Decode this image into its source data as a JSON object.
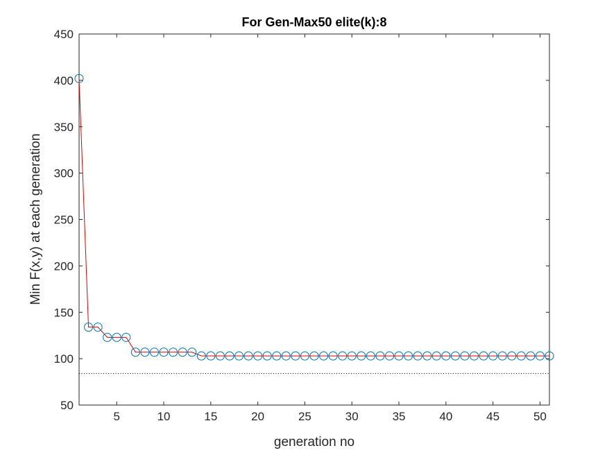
{
  "chart_data": {
    "type": "line",
    "title": "For Gen-Max50 elite(k):8",
    "xlabel": "generation no",
    "ylabel": "Min F(x,y) at each generation",
    "xlim": [
      1,
      51
    ],
    "ylim": [
      50,
      450
    ],
    "xticks": [
      5,
      10,
      15,
      20,
      25,
      30,
      35,
      40,
      45,
      50
    ],
    "yticks": [
      50,
      100,
      150,
      200,
      250,
      300,
      350,
      400,
      450
    ],
    "grid": false,
    "series": [
      {
        "style": "line-with-circle-markers",
        "line_color": "#e00000",
        "marker_color": "#0072bd",
        "x": [
          1,
          2,
          3,
          4,
          5,
          6,
          7,
          8,
          9,
          10,
          11,
          12,
          13,
          14,
          15,
          16,
          17,
          18,
          19,
          20,
          21,
          22,
          23,
          24,
          25,
          26,
          27,
          28,
          29,
          30,
          31,
          32,
          33,
          34,
          35,
          36,
          37,
          38,
          39,
          40,
          41,
          42,
          43,
          44,
          45,
          46,
          47,
          48,
          49,
          50,
          51
        ],
        "y": [
          402,
          134,
          134,
          123,
          123,
          123,
          107,
          107,
          107,
          107,
          107,
          107,
          107,
          103,
          103,
          103,
          103,
          103,
          103,
          103,
          103,
          103,
          103,
          103,
          103,
          103,
          103,
          103,
          103,
          103,
          103,
          103,
          103,
          103,
          103,
          103,
          103,
          103,
          103,
          103,
          103,
          103,
          103,
          103,
          103,
          103,
          103,
          103,
          103,
          103,
          103
        ]
      }
    ],
    "reference_line": {
      "style": "dotted",
      "color": "#000000",
      "y": 84
    }
  }
}
